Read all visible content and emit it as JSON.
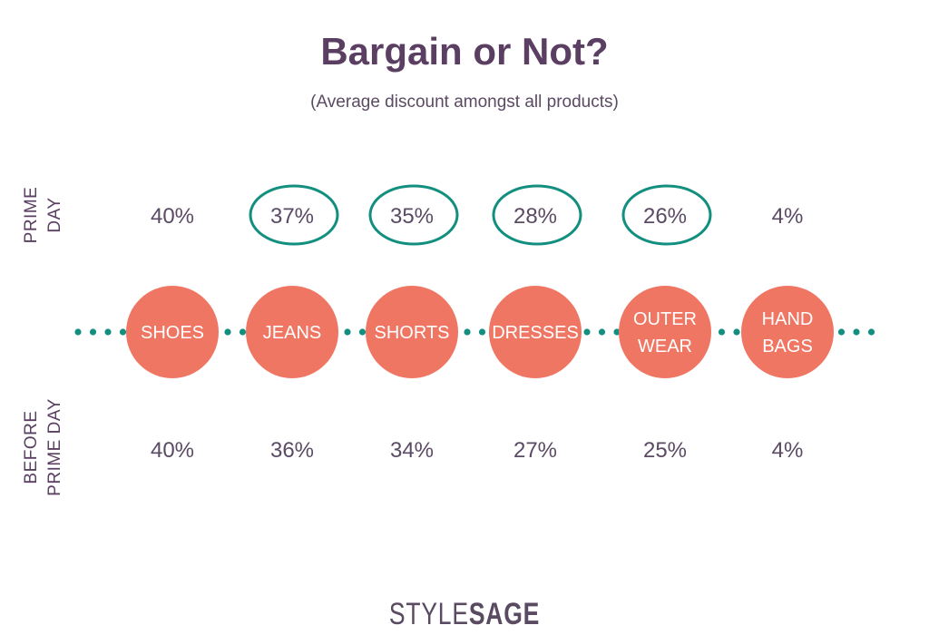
{
  "chart_data": {
    "type": "table",
    "title": "Bargain or Not?",
    "subtitle": "(Average discount amongst all products)",
    "row_labels": {
      "prime_day": [
        "PRIME",
        "DAY"
      ],
      "before_prime_day": [
        "BEFORE",
        "PRIME DAY"
      ]
    },
    "categories": [
      {
        "name": "SHOES",
        "lines": [
          "SHOES"
        ]
      },
      {
        "name": "JEANS",
        "lines": [
          "JEANS"
        ]
      },
      {
        "name": "SHORTS",
        "lines": [
          "SHORTS"
        ]
      },
      {
        "name": "DRESSES",
        "lines": [
          "DRESSES"
        ]
      },
      {
        "name": "OUTER WEAR",
        "lines": [
          "OUTER",
          "WEAR"
        ]
      },
      {
        "name": "HAND BAGS",
        "lines": [
          "HAND",
          "BAGS"
        ]
      }
    ],
    "series": [
      {
        "name": "PRIME DAY",
        "values": [
          40,
          37,
          35,
          28,
          26,
          4
        ],
        "labels": [
          "40%",
          "37%",
          "35%",
          "28%",
          "26%",
          "4%"
        ],
        "highlighted": [
          false,
          true,
          true,
          true,
          true,
          false
        ]
      },
      {
        "name": "BEFORE PRIME DAY",
        "values": [
          40,
          36,
          34,
          27,
          25,
          4
        ],
        "labels": [
          "40%",
          "36%",
          "34%",
          "27%",
          "25%",
          "4%"
        ]
      }
    ],
    "unit": "%",
    "colors": {
      "category_circle": "#f07664",
      "highlight_ring": "#128f7e",
      "dotted_line": "#128f7e",
      "text": "#5a4466"
    }
  },
  "brand": {
    "part1": "STYLE",
    "part2": "SAGE"
  }
}
